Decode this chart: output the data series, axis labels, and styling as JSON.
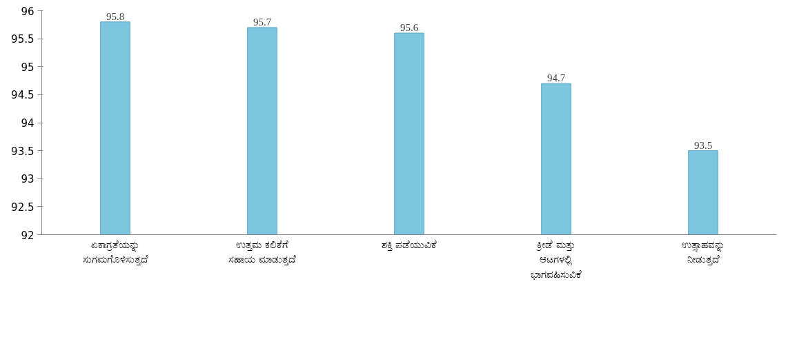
{
  "chart_data": {
    "type": "bar",
    "categories": [
      "ಏಕಾಗ್ರತೆಯನ್ನು\nಸುಗಮಗೊಳಿಸುತ್ತದೆ",
      "ಉತ್ತಮ ಕಲಿಕೆಗೆ\nಸಹಾಯ ಮಾಡುತ್ತದೆ",
      "ಶಕ್ತಿ ಪಡೆಯುವಿಕೆ",
      "ಕ್ರೀಡೆ ಮತ್ತು\nಆಟಗಳಲ್ಲಿ\nಭಾಗವಹಿಸುವಿಕೆ",
      "ಉತ್ಸಾಹವನ್ನು\nನೀಡುತ್ತದೆ"
    ],
    "values": [
      95.8,
      95.7,
      95.6,
      94.7,
      93.5
    ],
    "color": "#7cc6e0",
    "ylim": [
      92,
      96
    ],
    "yticks": [
      92,
      92.5,
      93,
      93.5,
      94,
      94.5,
      95,
      95.5,
      96
    ],
    "data_labels": true,
    "grid": false
  }
}
